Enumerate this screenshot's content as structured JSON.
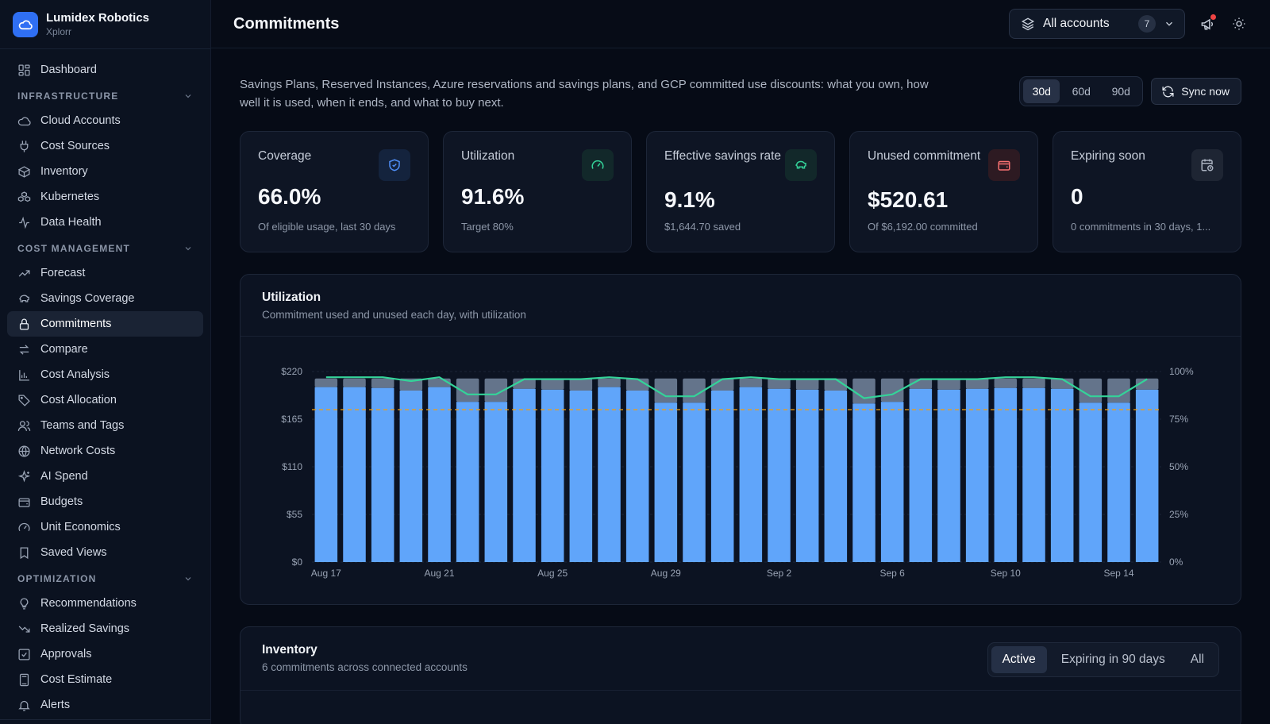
{
  "brand": {
    "name": "Lumidex Robotics",
    "sub": "Xplorr"
  },
  "sidebar": {
    "dashboard": "Dashboard",
    "infrastructure": {
      "title": "INFRASTRUCTURE",
      "items": [
        "Cloud Accounts",
        "Cost Sources",
        "Inventory",
        "Kubernetes",
        "Data Health"
      ]
    },
    "cost_management": {
      "title": "COST MANAGEMENT",
      "items": [
        "Forecast",
        "Savings Coverage",
        "Commitments",
        "Compare",
        "Cost Analysis",
        "Cost Allocation",
        "Teams and Tags",
        "Network Costs",
        "AI Spend",
        "Budgets",
        "Unit Economics",
        "Saved Views"
      ]
    },
    "optimization": {
      "title": "OPTIMIZATION",
      "items": [
        "Recommendations",
        "Realized Savings",
        "Approvals",
        "Cost Estimate",
        "Alerts"
      ]
    },
    "active_item": "Commitments"
  },
  "header": {
    "title": "Commitments",
    "account_select": {
      "label": "All accounts",
      "count": "7"
    }
  },
  "intro": {
    "text": "Savings Plans, Reserved Instances, Azure reservations and savings plans, and GCP committed use discounts: what you own, how well it is used, when it ends, and what to buy next.",
    "ranges": [
      "30d",
      "60d",
      "90d"
    ],
    "active_range": "30d",
    "sync_label": "Sync now"
  },
  "kpis": [
    {
      "label": "Coverage",
      "value": "66.0%",
      "sub": "Of eligible usage, last 30 days",
      "icon": "shield-icon",
      "accent": "#3b82f6"
    },
    {
      "label": "Utilization",
      "value": "91.6%",
      "sub": "Target 80%",
      "icon": "gauge-icon",
      "accent": "#34d399"
    },
    {
      "label": "Effective savings rate",
      "value": "9.1%",
      "sub": "$1,644.70 saved",
      "icon": "piggy-bank-icon",
      "accent": "#34d399"
    },
    {
      "label": "Unused commitment",
      "value": "$520.61",
      "sub": "Of $6,192.00 committed",
      "icon": "wallet-icon",
      "accent": "#f87171"
    },
    {
      "label": "Expiring soon",
      "value": "0",
      "sub": "0 commitments in 30 days, 1...",
      "icon": "calendar-clock-icon",
      "accent": "#9ca3af"
    }
  ],
  "utilization_panel": {
    "title": "Utilization",
    "subtitle": "Commitment used and unused each day, with utilization"
  },
  "chart_data": {
    "type": "bar",
    "stacked": true,
    "categories": [
      "Aug 17",
      "Aug 18",
      "Aug 19",
      "Aug 20",
      "Aug 21",
      "Aug 22",
      "Aug 23",
      "Aug 24",
      "Aug 25",
      "Aug 26",
      "Aug 27",
      "Aug 28",
      "Aug 29",
      "Aug 30",
      "Aug 31",
      "Sep 1",
      "Sep 2",
      "Sep 3",
      "Sep 4",
      "Sep 5",
      "Sep 6",
      "Sep 7",
      "Sep 8",
      "Sep 9",
      "Sep 10",
      "Sep 11",
      "Sep 12",
      "Sep 13",
      "Sep 14",
      "Sep 15"
    ],
    "x_tick_labels": [
      "Aug 17",
      "Aug 21",
      "Aug 25",
      "Aug 29",
      "Sep 2",
      "Sep 6",
      "Sep 10",
      "Sep 14"
    ],
    "series": [
      {
        "name": "Used",
        "color": "#60a5fa",
        "values": [
          202,
          202,
          201,
          198,
          202,
          185,
          185,
          200,
          199,
          198,
          202,
          198,
          184,
          184,
          198,
          202,
          200,
          199,
          198,
          183,
          185,
          200,
          199,
          200,
          201,
          201,
          200,
          184,
          184,
          199
        ]
      },
      {
        "name": "Unused",
        "color": "#64748b",
        "values": [
          10,
          10,
          11,
          14,
          10,
          27,
          27,
          12,
          13,
          14,
          10,
          14,
          28,
          28,
          14,
          10,
          12,
          13,
          14,
          29,
          27,
          12,
          13,
          12,
          11,
          11,
          12,
          28,
          28,
          13
        ]
      },
      {
        "name": "Utilization",
        "axis": "right",
        "color": "#34d399",
        "values": [
          97,
          97,
          97,
          95,
          97,
          88,
          88,
          96,
          96,
          96,
          97,
          96,
          87,
          87,
          96,
          97,
          96,
          96,
          96,
          86,
          88,
          96,
          96,
          96,
          97,
          97,
          96,
          87,
          87,
          96
        ]
      }
    ],
    "target_line": {
      "value": 80,
      "axis": "right",
      "color": "#f59e0b"
    },
    "y_left": {
      "ticks": [
        "$0",
        "$55",
        "$110",
        "$165",
        "$220"
      ],
      "ylim": [
        0,
        220
      ]
    },
    "y_right": {
      "ticks": [
        "0%",
        "25%",
        "50%",
        "75%",
        "100%"
      ],
      "ylim": [
        0,
        100
      ]
    },
    "grid": true
  },
  "inventory_panel": {
    "title": "Inventory",
    "subtitle": "6 commitments across connected accounts",
    "tabs": [
      "Active",
      "Expiring in 90 days",
      "All"
    ],
    "active_tab": "Active"
  }
}
